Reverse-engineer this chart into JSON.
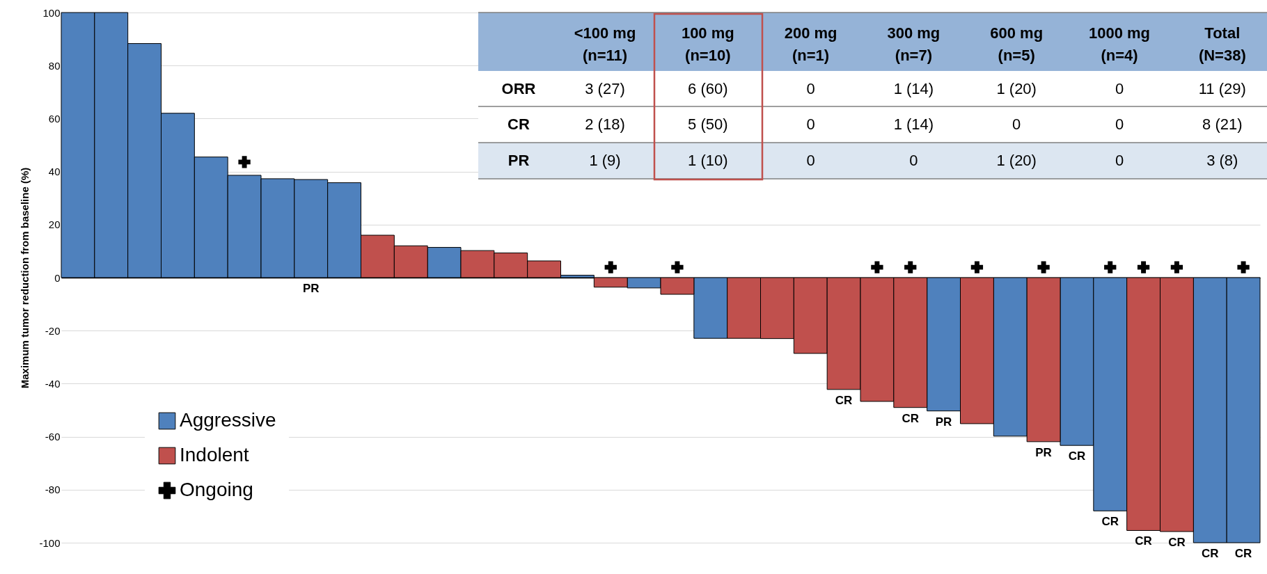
{
  "chart_data": {
    "type": "bar",
    "ylabel": "Maximum tumor reduction from baseline (%)",
    "categories": [
      null,
      null,
      null,
      null,
      null,
      null,
      null,
      null,
      null,
      null,
      null,
      null,
      null,
      null,
      null,
      null,
      null,
      null,
      null,
      null,
      null,
      null,
      null,
      null,
      null,
      null,
      null,
      null,
      null,
      null,
      null,
      null,
      null,
      null,
      null,
      null
    ],
    "series": [
      {
        "name": "Aggressive",
        "color": "#4f81bd",
        "values": [
          100,
          100,
          88.3,
          62,
          45.5,
          38.6,
          37.3,
          37,
          35.8,
          null,
          null,
          11.4,
          null,
          null,
          null,
          0.9,
          null,
          -3.9,
          null,
          -22.9,
          null,
          null,
          null,
          null,
          null,
          null,
          -50.3,
          null,
          -59.8,
          null,
          -63.3,
          -88,
          null,
          null,
          -100,
          -100
        ],
        "value_labels": [
          null,
          null,
          null,
          null,
          null,
          null,
          null,
          "PR",
          null,
          null,
          null,
          null,
          null,
          null,
          null,
          null,
          null,
          null,
          null,
          null,
          null,
          null,
          null,
          null,
          null,
          null,
          "PR",
          null,
          null,
          null,
          "CR",
          "CR",
          null,
          null,
          "CR",
          "CR"
        ]
      },
      {
        "name": "Indolent",
        "color": "#c0504d",
        "values": [
          null,
          null,
          null,
          null,
          null,
          null,
          null,
          null,
          null,
          16,
          12,
          null,
          10.2,
          9.3,
          6.3,
          null,
          -3.6,
          null,
          -6.3,
          null,
          -22.9,
          -23,
          -28.6,
          -42.2,
          -46.7,
          -49,
          null,
          -55.1,
          null,
          -61.9,
          null,
          null,
          -95.4,
          -95.8,
          null,
          null
        ],
        "value_labels": [
          null,
          null,
          null,
          null,
          null,
          null,
          null,
          null,
          null,
          null,
          null,
          null,
          null,
          null,
          null,
          null,
          null,
          null,
          null,
          null,
          null,
          null,
          null,
          "CR",
          null,
          "CR",
          null,
          null,
          null,
          "PR",
          null,
          null,
          "CR",
          "CR",
          null,
          null
        ]
      },
      {
        "name": "Ongoing",
        "type": "scatter",
        "marker": "cross",
        "color": "#000000",
        "values": [
          null,
          null,
          null,
          null,
          null,
          43.6,
          null,
          null,
          null,
          null,
          null,
          null,
          null,
          null,
          null,
          null,
          3.9,
          null,
          3.9,
          null,
          null,
          null,
          null,
          null,
          3.9,
          3.9,
          null,
          3.9,
          null,
          3.9,
          null,
          3.9,
          3.9,
          3.9,
          null,
          3.9
        ]
      }
    ],
    "ylim": [
      -100,
      100
    ],
    "yticks": [
      -100,
      -80,
      -60,
      -40,
      -20,
      0,
      20,
      40,
      60,
      80,
      100
    ],
    "grid": "y",
    "legend": "left",
    "tick_labels": "y",
    "annotations": [
      "<100 mg",
      "100 mg",
      "200 mg",
      "300 mg",
      "600 mg",
      "1000 mg",
      "Total",
      "(n=11)",
      "(n=10)",
      "(n=1)",
      "(n=7)",
      "(n=5)",
      "(n=4)",
      "(N=38)",
      "ORR",
      "3 (27)",
      "6 (60)",
      "0",
      "1 (14)",
      "1 (20)",
      "0",
      "11 (29)",
      "CR",
      "2 (18)",
      "5 (50)",
      "0",
      "1 (14)",
      "0",
      "0",
      "8 (21)",
      "PR",
      "1 (9)",
      "1 (10)",
      "0",
      "0",
      "1 (20)",
      "0",
      "3 (8)"
    ]
  }
}
